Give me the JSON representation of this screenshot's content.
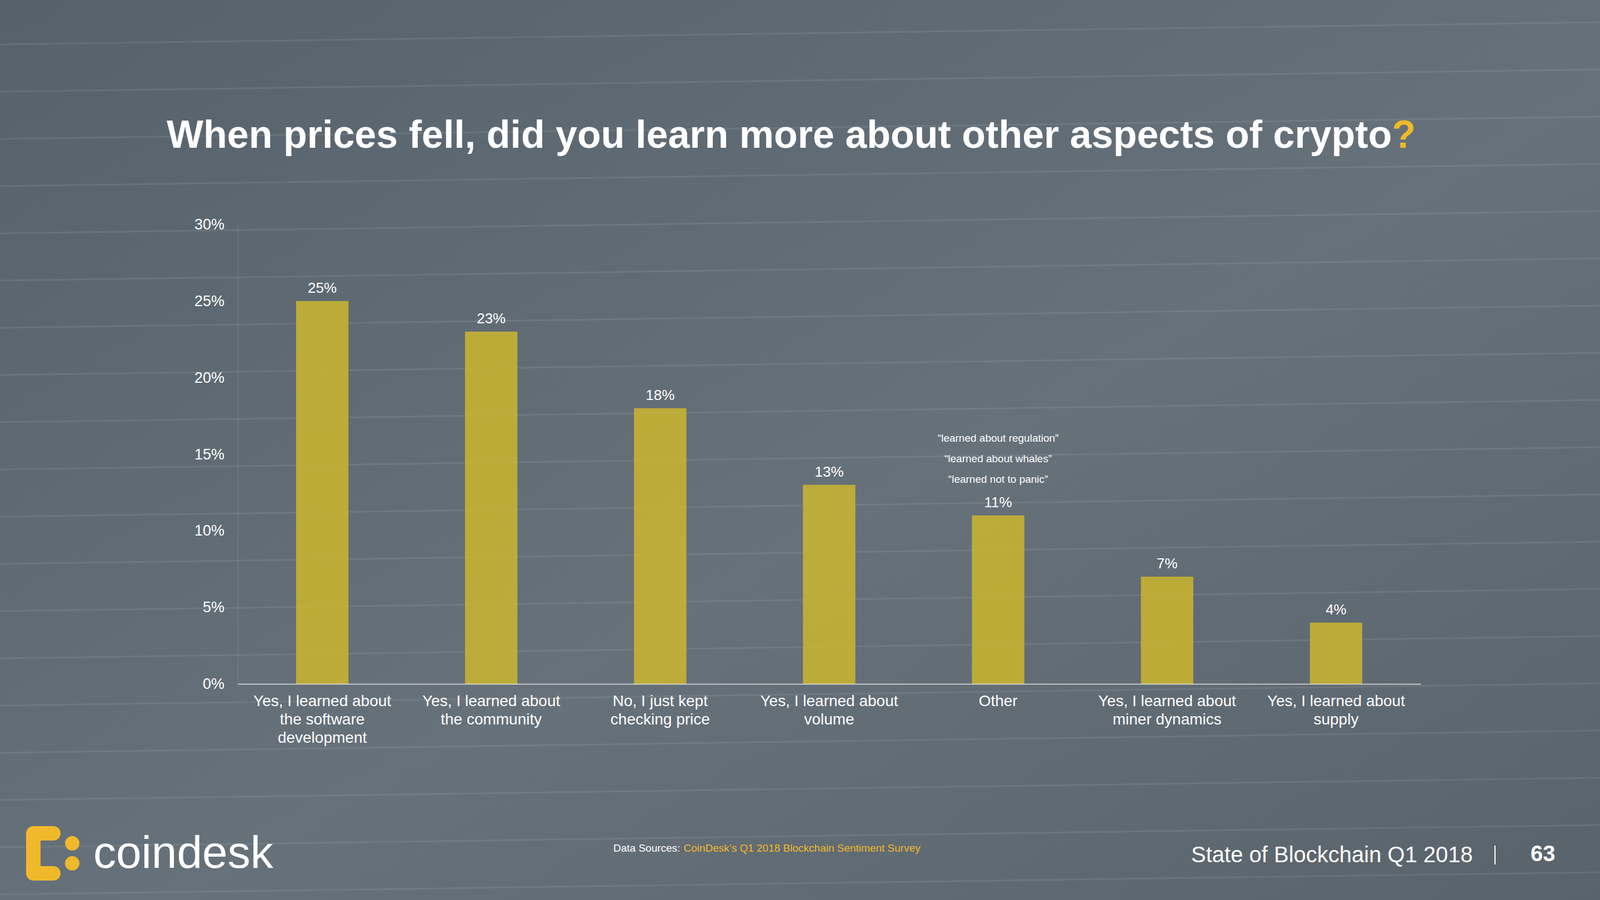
{
  "chart_data": {
    "type": "bar",
    "title": "When prices fell, did you learn more about other aspects of crypto?",
    "categories": [
      "Yes, I learned about the software development",
      "Yes, I learned about the community",
      "No, I just kept checking price",
      "Yes, I learned about volume",
      "Other",
      "Yes, I learned about miner dynamics",
      "Yes, I learned about supply"
    ],
    "values": [
      25,
      23,
      18,
      13,
      11,
      7,
      4
    ],
    "value_labels": [
      "25%",
      "23%",
      "18%",
      "13%",
      "11%",
      "7%",
      "4%"
    ],
    "data_labels": true,
    "color": "#c9b430",
    "ylim": [
      0,
      30
    ],
    "yticks": [
      {
        "value": 0,
        "label": "0%"
      },
      {
        "value": 5,
        "label": "5%"
      },
      {
        "value": 10,
        "label": "10%"
      },
      {
        "value": 15,
        "label": "15%"
      },
      {
        "value": 20,
        "label": "20%"
      },
      {
        "value": 25,
        "label": "25%"
      },
      {
        "value": 30,
        "label": "30%"
      }
    ],
    "grid": false,
    "annotations": [
      {
        "text": "“learned about regulation”",
        "category": "Other"
      },
      {
        "text": "“learned about whales”",
        "category": "Other"
      },
      {
        "text": "“learned not to panic”",
        "category": "Other"
      }
    ],
    "footer": {
      "source_prefix": "Data Sources:",
      "source": "CoinDesk’s Q1 2018 Blockchain Sentiment Survey",
      "brand": "coindesk",
      "report": "State of Blockchain Q1 2018",
      "page": "63"
    }
  }
}
